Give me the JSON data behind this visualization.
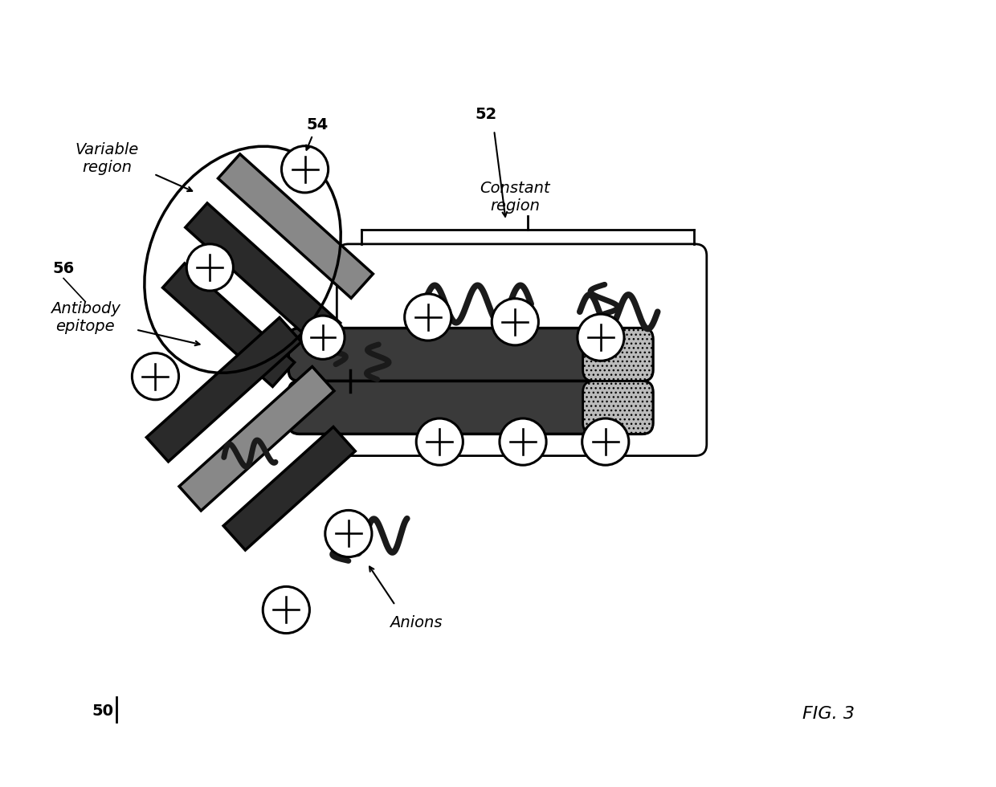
{
  "title": "FIG. 3",
  "label_50": "50",
  "label_52": "52",
  "label_54": "54",
  "label_56": "56",
  "text_variable_region": "Variable\nregion",
  "text_constant_region": "Constant\nregion",
  "text_antibody_epitope": "Antibody\nepitope",
  "text_anions": "Anions",
  "bg_color": "#ffffff",
  "dark_color": "#1a1a1a",
  "medium_color": "#555555",
  "light_gray": "#aaaaaa",
  "stipple_color": "#888888"
}
